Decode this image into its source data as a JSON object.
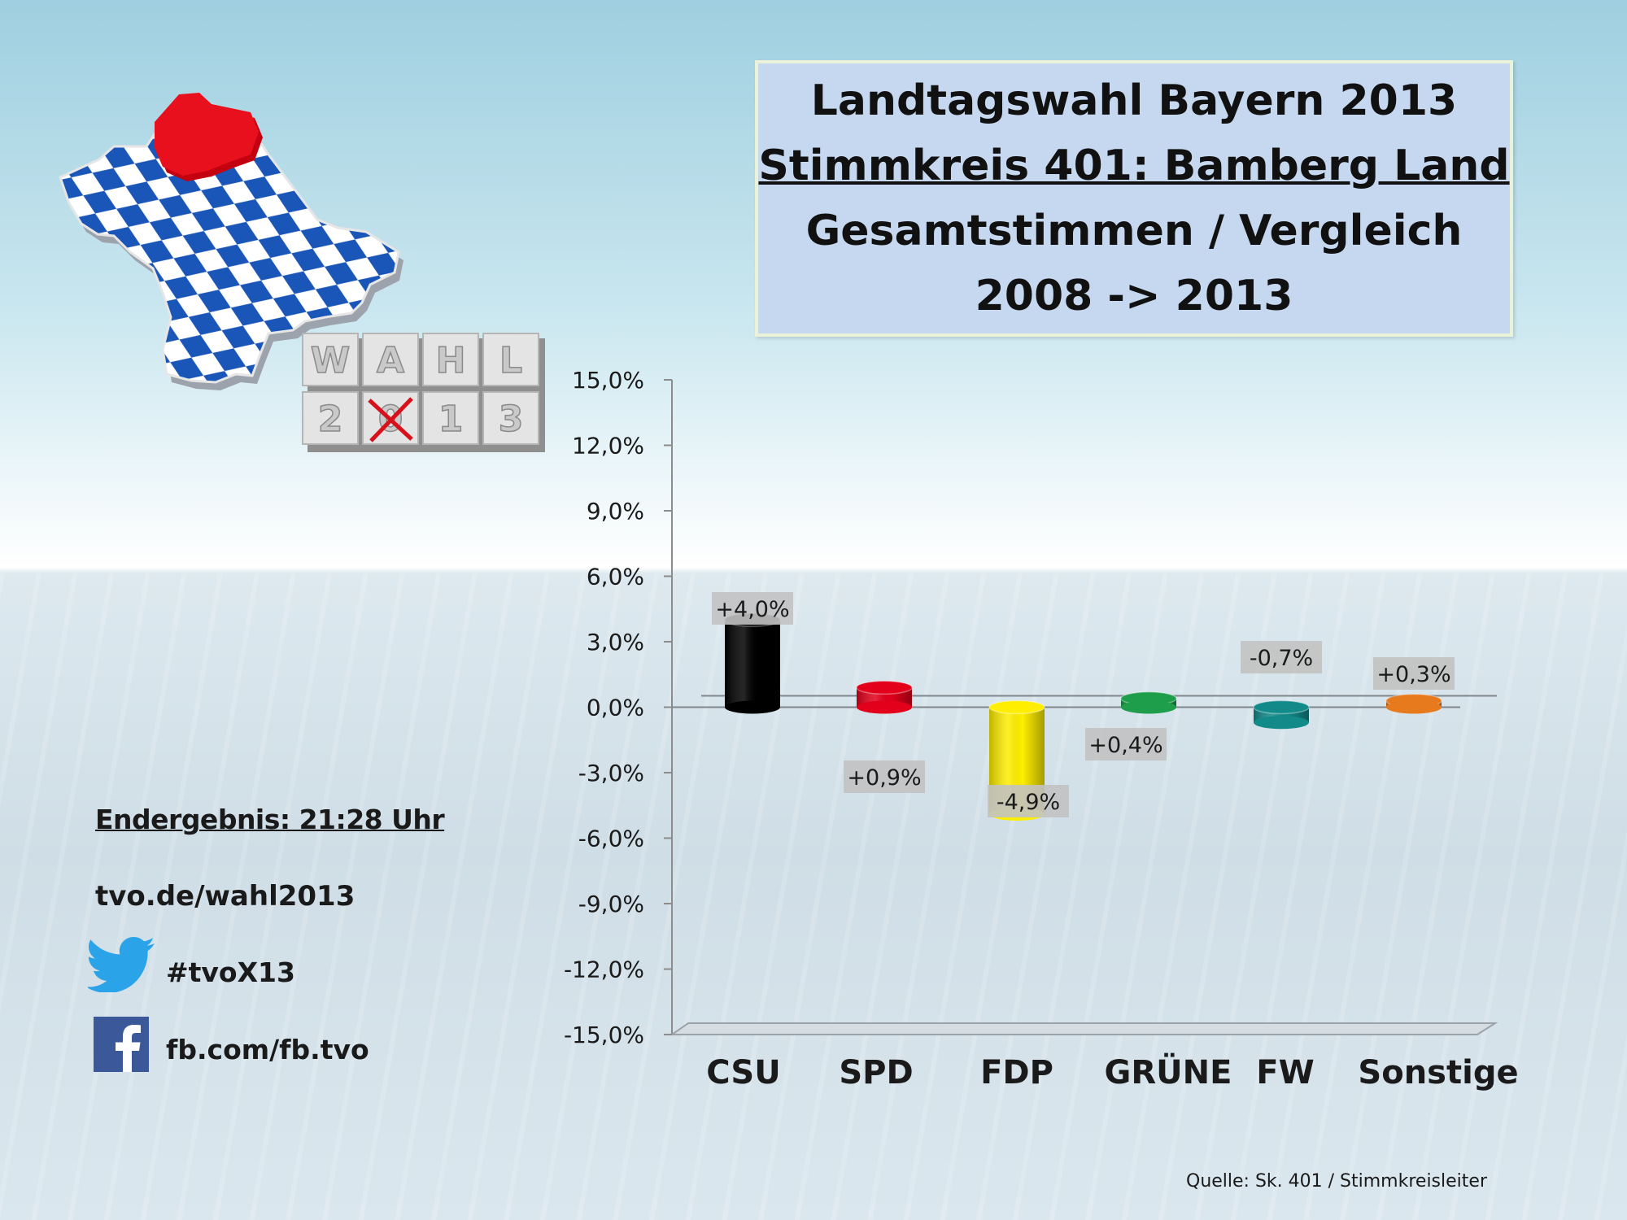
{
  "title": {
    "line1": "Landtagswahl Bayern 2013",
    "line2": "Stimmkreis 401: Bamberg Land",
    "line3": "Gesamtstimmen / Vergleich",
    "line4": "2008 -> 2013"
  },
  "logo": {
    "tiles_top": [
      "W",
      "A",
      "H",
      "L"
    ],
    "tiles_bottom": [
      "2",
      "0",
      "1",
      "3"
    ]
  },
  "info": {
    "endergebnis": "Endergebnis: 21:28 Uhr",
    "url": "tvo.de/wahl2013",
    "twitter": "#tvoX13",
    "facebook": "fb.com/fb.tvo"
  },
  "source": "Quelle: Sk. 401 / Stimmkreisleiter",
  "colors": {
    "CSU": "#000000",
    "SPD": "#e3001b",
    "FDP": "#ffee00",
    "GRÜNE": "#1e9e4a",
    "FW": "#138a8a",
    "Sonstige": "#e87a1e",
    "title_bg": "#c5d8ef",
    "logo_blue": "#1a55b8",
    "logo_red": "#e8101c"
  },
  "chart_data": {
    "type": "bar",
    "categories": [
      "CSU",
      "SPD",
      "FDP",
      "GRÜNE",
      "FW",
      "Sonstige"
    ],
    "values": [
      4.0,
      0.9,
      -4.9,
      0.4,
      -0.7,
      0.3
    ],
    "data_labels": [
      "+4,0%",
      "+0,9%",
      "-4,9%",
      "+0,4%",
      "-0,7%",
      "+0,3%"
    ],
    "ylim": [
      -15,
      15
    ],
    "yticks": [
      15,
      12,
      9,
      6,
      3,
      0,
      -3,
      -6,
      -9,
      -12,
      -15
    ],
    "ytick_labels": [
      "15,0%",
      "12,0%",
      "9,0%",
      "6,0%",
      "3,0%",
      "0,0%",
      "-3,0%",
      "-6,0%",
      "-9,0%",
      "-12,0%",
      "-15,0%"
    ],
    "grid": false,
    "legend": "none"
  }
}
